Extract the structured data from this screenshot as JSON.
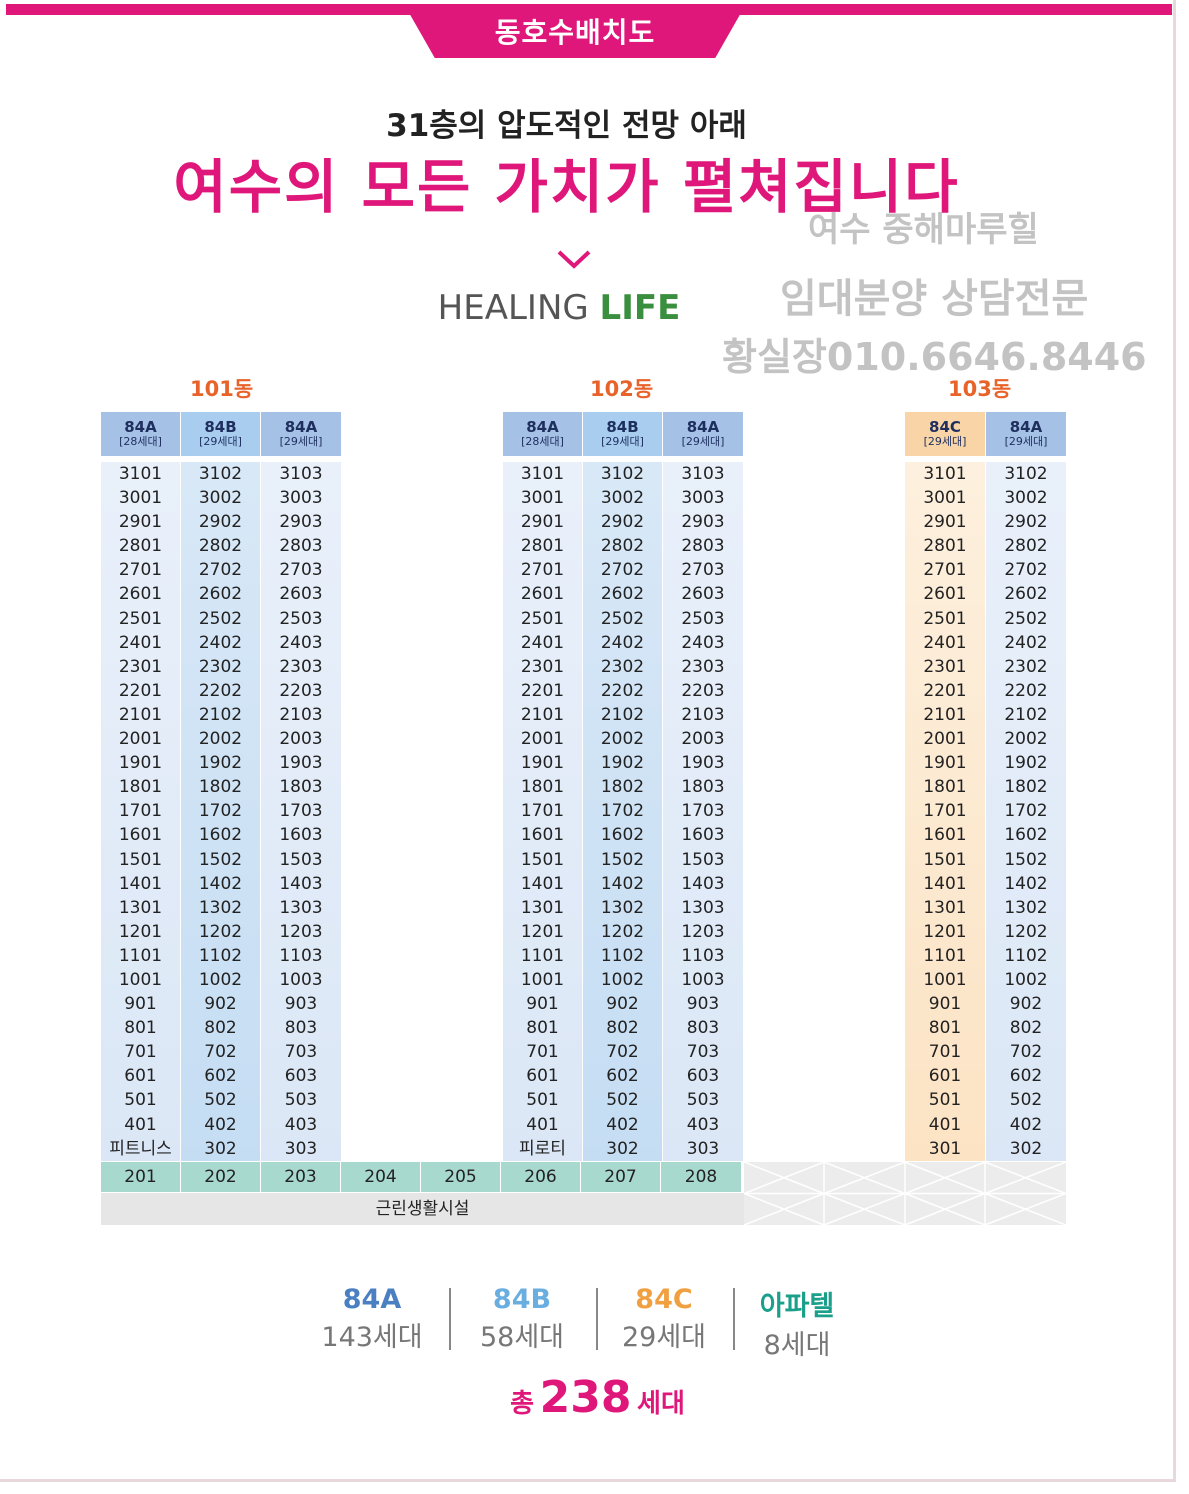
{
  "tab_title": "동호수배치도",
  "subtitle": "31층의 압도적인 전망 아래",
  "main_title": "여수의 모든 가치가 펼쳐집니다",
  "healing": {
    "word1": "HEALING",
    "word2": "LIFE"
  },
  "watermark": {
    "line1": "여수 중해마루힐",
    "line2": "임대분양 상담전문",
    "line3": "황실장010.6646.8446"
  },
  "buildings": [
    {
      "name": "101동",
      "columns": [
        {
          "type": "84A",
          "count": "[28세대]",
          "units": [
            "3101",
            "3001",
            "2901",
            "2801",
            "2701",
            "2601",
            "2501",
            "2401",
            "2301",
            "2201",
            "2101",
            "2001",
            "1901",
            "1801",
            "1701",
            "1601",
            "1501",
            "1401",
            "1301",
            "1201",
            "1101",
            "1001",
            "901",
            "801",
            "701",
            "601",
            "501",
            "401",
            "피트니스"
          ]
        },
        {
          "type": "84B",
          "count": "[29세대]",
          "units": [
            "3102",
            "3002",
            "2902",
            "2802",
            "2702",
            "2602",
            "2502",
            "2402",
            "2302",
            "2202",
            "2102",
            "2002",
            "1902",
            "1802",
            "1702",
            "1602",
            "1502",
            "1402",
            "1302",
            "1202",
            "1102",
            "1002",
            "902",
            "802",
            "702",
            "602",
            "502",
            "402",
            "302"
          ]
        },
        {
          "type": "84A",
          "count": "[29세대]",
          "units": [
            "3103",
            "3003",
            "2903",
            "2803",
            "2703",
            "2603",
            "2503",
            "2403",
            "2303",
            "2203",
            "2103",
            "2003",
            "1903",
            "1803",
            "1703",
            "1603",
            "1503",
            "1403",
            "1303",
            "1203",
            "1103",
            "1003",
            "903",
            "803",
            "703",
            "603",
            "503",
            "403",
            "303"
          ]
        }
      ]
    },
    {
      "name": "102동",
      "columns": [
        {
          "type": "84A",
          "count": "[28세대]",
          "units": [
            "3101",
            "3001",
            "2901",
            "2801",
            "2701",
            "2601",
            "2501",
            "2401",
            "2301",
            "2201",
            "2101",
            "2001",
            "1901",
            "1801",
            "1701",
            "1601",
            "1501",
            "1401",
            "1301",
            "1201",
            "1101",
            "1001",
            "901",
            "801",
            "701",
            "601",
            "501",
            "401",
            "피로티"
          ]
        },
        {
          "type": "84B",
          "count": "[29세대]",
          "units": [
            "3102",
            "3002",
            "2902",
            "2802",
            "2702",
            "2602",
            "2502",
            "2402",
            "2302",
            "2202",
            "2102",
            "2002",
            "1902",
            "1802",
            "1702",
            "1602",
            "1502",
            "1402",
            "1302",
            "1202",
            "1102",
            "1002",
            "902",
            "802",
            "702",
            "602",
            "502",
            "402",
            "302"
          ]
        },
        {
          "type": "84A",
          "count": "[29세대]",
          "units": [
            "3103",
            "3003",
            "2903",
            "2803",
            "2703",
            "2603",
            "2503",
            "2403",
            "2303",
            "2203",
            "2103",
            "2003",
            "1903",
            "1803",
            "1703",
            "1603",
            "1503",
            "1403",
            "1303",
            "1203",
            "1103",
            "1003",
            "903",
            "803",
            "703",
            "603",
            "503",
            "403",
            "303"
          ]
        }
      ]
    },
    {
      "name": "103동",
      "columns": [
        {
          "type": "84C",
          "count": "[29세대]",
          "units": [
            "3101",
            "3001",
            "2901",
            "2801",
            "2701",
            "2601",
            "2501",
            "2401",
            "2301",
            "2201",
            "2101",
            "2001",
            "1901",
            "1801",
            "1701",
            "1601",
            "1501",
            "1401",
            "1301",
            "1201",
            "1101",
            "1001",
            "901",
            "801",
            "701",
            "601",
            "501",
            "401",
            "301"
          ]
        },
        {
          "type": "84A",
          "count": "[29세대]",
          "units": [
            "3102",
            "3002",
            "2902",
            "2802",
            "2702",
            "2602",
            "2502",
            "2402",
            "2302",
            "2202",
            "2102",
            "2002",
            "1902",
            "1802",
            "1702",
            "1602",
            "1502",
            "1402",
            "1302",
            "1202",
            "1102",
            "1002",
            "902",
            "802",
            "702",
            "602",
            "502",
            "402",
            "302"
          ]
        }
      ]
    }
  ],
  "apartel_units": [
    "201",
    "202",
    "203",
    "204",
    "205",
    "206",
    "207",
    "208"
  ],
  "commercial_label": "근린생활시설",
  "legend": [
    {
      "type": "84A",
      "count": "143세대",
      "color": "#4a7fc1"
    },
    {
      "type": "84B",
      "count": "58세대",
      "color": "#6aaee0"
    },
    {
      "type": "84C",
      "count": "29세대",
      "color": "#f0a040"
    },
    {
      "type": "아파텔",
      "count": "8세대",
      "color": "#1aa08a"
    }
  ],
  "total": {
    "prefix": "총",
    "number": "238",
    "suffix": "세대"
  },
  "colors": {
    "accent": "#e0177a",
    "building_label": "#e8632a"
  }
}
